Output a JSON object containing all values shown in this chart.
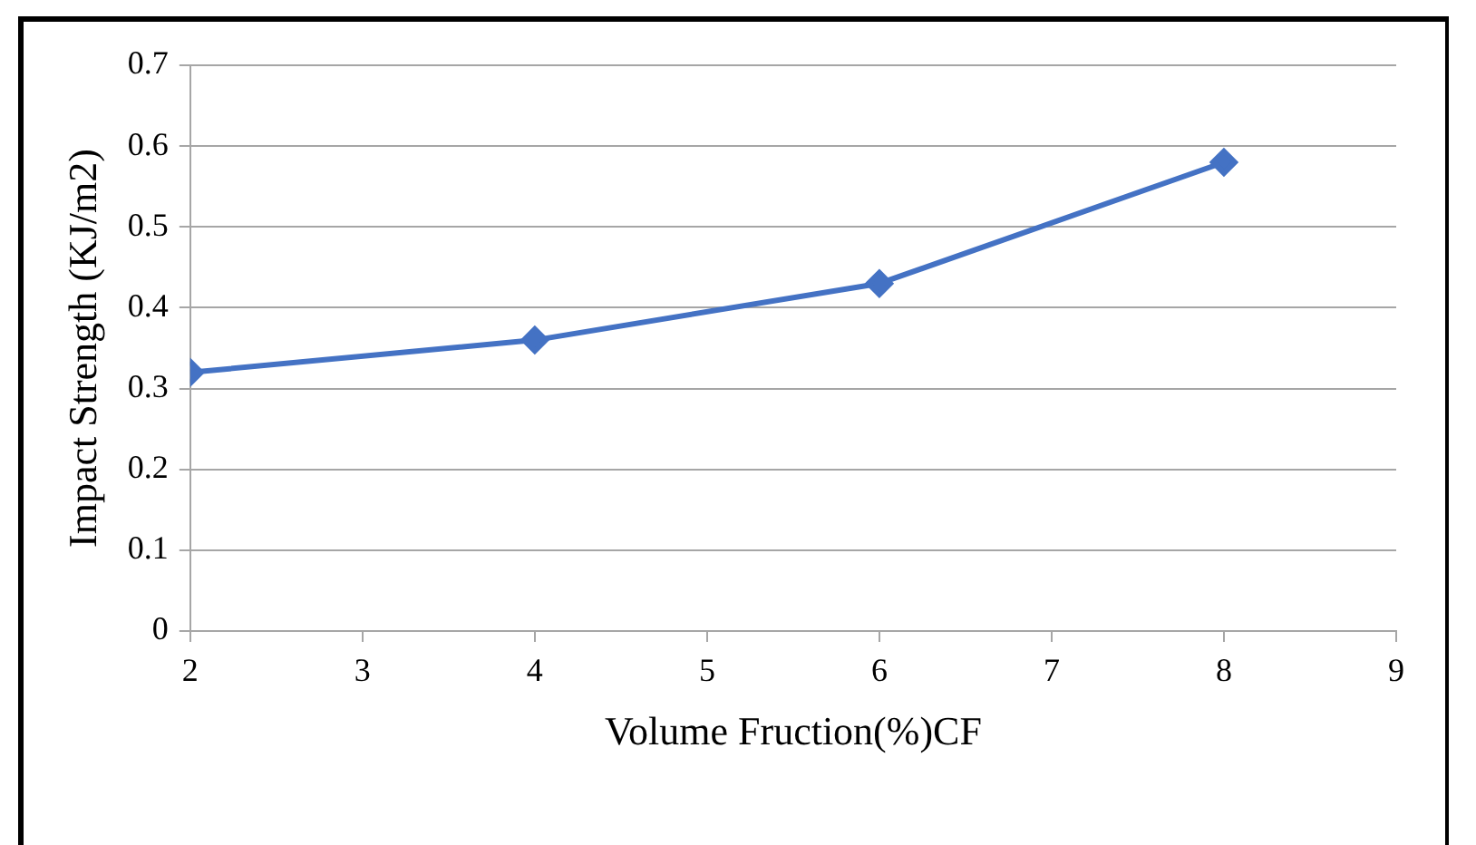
{
  "chart_data": {
    "type": "line",
    "xlabel": "Volume Fruction(%)CF",
    "ylabel": "Impact Strength (KJ/m2)",
    "x": [
      2,
      4,
      6,
      8
    ],
    "series": [
      {
        "color": "#4472c4",
        "values": [
          0.32,
          0.36,
          0.43,
          0.58
        ]
      }
    ],
    "xlim": [
      2,
      9
    ],
    "xticks": [
      2,
      3,
      4,
      5,
      6,
      7,
      8,
      9
    ],
    "ylim": [
      0,
      0.7
    ],
    "yticks": [
      0,
      0.1,
      0.2,
      0.3,
      0.4,
      0.5,
      0.6,
      0.7
    ],
    "grid": "y",
    "marker": "diamond",
    "line_style": "solid"
  }
}
